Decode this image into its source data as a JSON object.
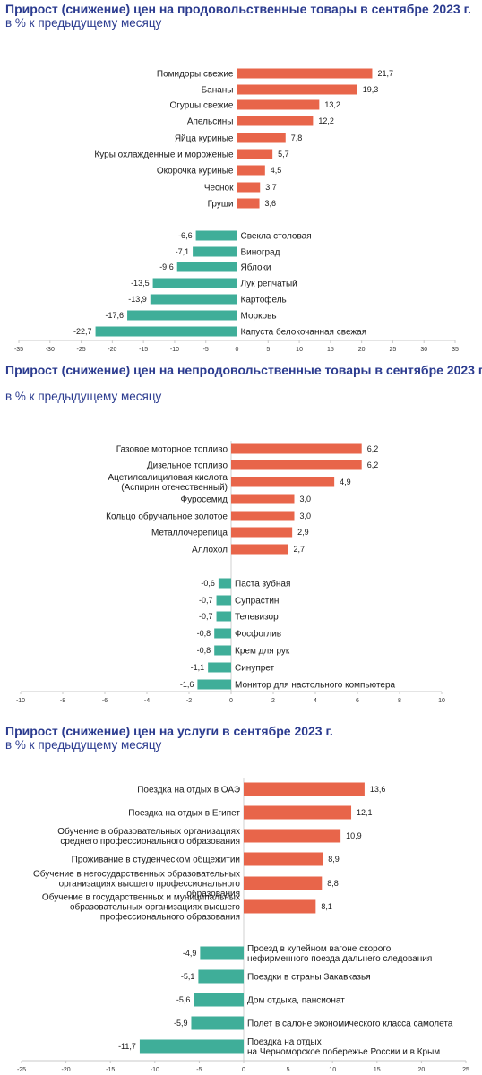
{
  "chart_data": [
    {
      "type": "bar",
      "orientation": "horizontal",
      "title": "Прирост (снижение) цен на продовольственные товары в сентябре 2023 г.",
      "subtitle": "в % к предыдущему месяцу",
      "xlim": [
        -35,
        35
      ],
      "ticks": [
        "-35",
        "-30",
        "-25",
        "-20",
        "-15",
        "-10",
        "-5",
        "0",
        "5",
        "10",
        "15",
        "20",
        "25",
        "30",
        "35"
      ],
      "colors": {
        "positive": "#e8654a",
        "negative": "#3fae99"
      },
      "categories": [
        "Помидоры свежие",
        "Бананы",
        "Огурцы свежие",
        "Апельсины",
        "Яйца куриные",
        "Куры охлажденные и мороженые",
        "Окорочка куриные",
        "Чеснок",
        "Груши",
        "Свекла столовая",
        "Виноград",
        "Яблоки",
        "Лук репчатый",
        "Картофель",
        "Морковь",
        "Капуста белокочанная свежая"
      ],
      "values": [
        21.7,
        19.3,
        13.2,
        12.2,
        7.8,
        5.7,
        4.5,
        3.7,
        3.6,
        -6.6,
        -7.1,
        -9.6,
        -13.5,
        -13.9,
        -17.6,
        -22.7
      ],
      "value_labels": [
        "21,7",
        "19,3",
        "13,2",
        "12,2",
        "7,8",
        "5,7",
        "4,5",
        "3,7",
        "3,6",
        "-6,6",
        "-7,1",
        "-9,6",
        "-13,5",
        "-13,9",
        "-17,6",
        "-22,7"
      ]
    },
    {
      "type": "bar",
      "orientation": "horizontal",
      "title": "Прирост (снижение) цен на непродовольственные товары в сентябре 2023 г.",
      "subtitle": "в % к предыдущему месяцу",
      "xlim": [
        -10,
        10
      ],
      "ticks": [
        "-10",
        "-8",
        "-6",
        "-4",
        "-2",
        "0",
        "2",
        "4",
        "6",
        "8",
        "10"
      ],
      "colors": {
        "positive": "#e8654a",
        "negative": "#3fae99"
      },
      "categories": [
        "Газовое моторное топливо",
        "Дизельное топливо",
        "Ацетилсалициловая кислота\n(Аспирин отечественный)",
        "Фуросемид",
        "Кольцо обручальное золотое",
        "Металлочерепица",
        "Аллохол",
        "Паста зубная",
        "Супрастин",
        "Телевизор",
        "Фосфоглив",
        "Крем для рук",
        "Синупрет",
        "Монитор для настольного компьютера"
      ],
      "values": [
        6.2,
        6.2,
        4.9,
        3.0,
        3.0,
        2.9,
        2.7,
        -0.6,
        -0.7,
        -0.7,
        -0.8,
        -0.8,
        -1.1,
        -1.6
      ],
      "value_labels": [
        "6,2",
        "6,2",
        "4,9",
        "3,0",
        "3,0",
        "2,9",
        "2,7",
        "-0,6",
        "-0,7",
        "-0,7",
        "-0,8",
        "-0,8",
        "-1,1",
        "-1,6"
      ]
    },
    {
      "type": "bar",
      "orientation": "horizontal",
      "title": "Прирост (снижение) цен на услуги в сентябре 2023 г.",
      "subtitle": "в % к предыдущему месяцу",
      "xlim": [
        -25,
        25
      ],
      "ticks": [
        "-25",
        "-20",
        "-15",
        "-10",
        "-5",
        "0",
        "5",
        "10",
        "15",
        "20",
        "25"
      ],
      "colors": {
        "positive": "#e8654a",
        "negative": "#3fae99"
      },
      "categories": [
        "Поездка на отдых в ОАЭ",
        "Поездка на отдых в Египет",
        "Обучение в образовательных организациях\nсреднего профессионального образования",
        "Проживание в студенческом общежитии",
        "Обучение в негосударственных образовательных\nорганизациях высшего профессионального\nобразования",
        "Обучение в государственных и муниципальных\nобразовательных организациях высшего\nпрофессионального образования",
        "Проезд в купейном вагоне скорого\nнефирменного поезда дальнего следования",
        "Поездки в страны Закавказья",
        "Дом отдыха,  пансионат",
        "Полет в салоне экономического класса самолета",
        "Поездка на отдых\nна Черноморское побережье России и в Крым"
      ],
      "values": [
        13.6,
        12.1,
        10.9,
        8.9,
        8.8,
        8.1,
        -4.9,
        -5.1,
        -5.6,
        -5.9,
        -11.7
      ],
      "value_labels": [
        "13,6",
        "12,1",
        "10,9",
        "8,9",
        "8,8",
        "8,1",
        "-4,9",
        "-5,1",
        "-5,6",
        "-5,9",
        "-11,7"
      ]
    }
  ]
}
